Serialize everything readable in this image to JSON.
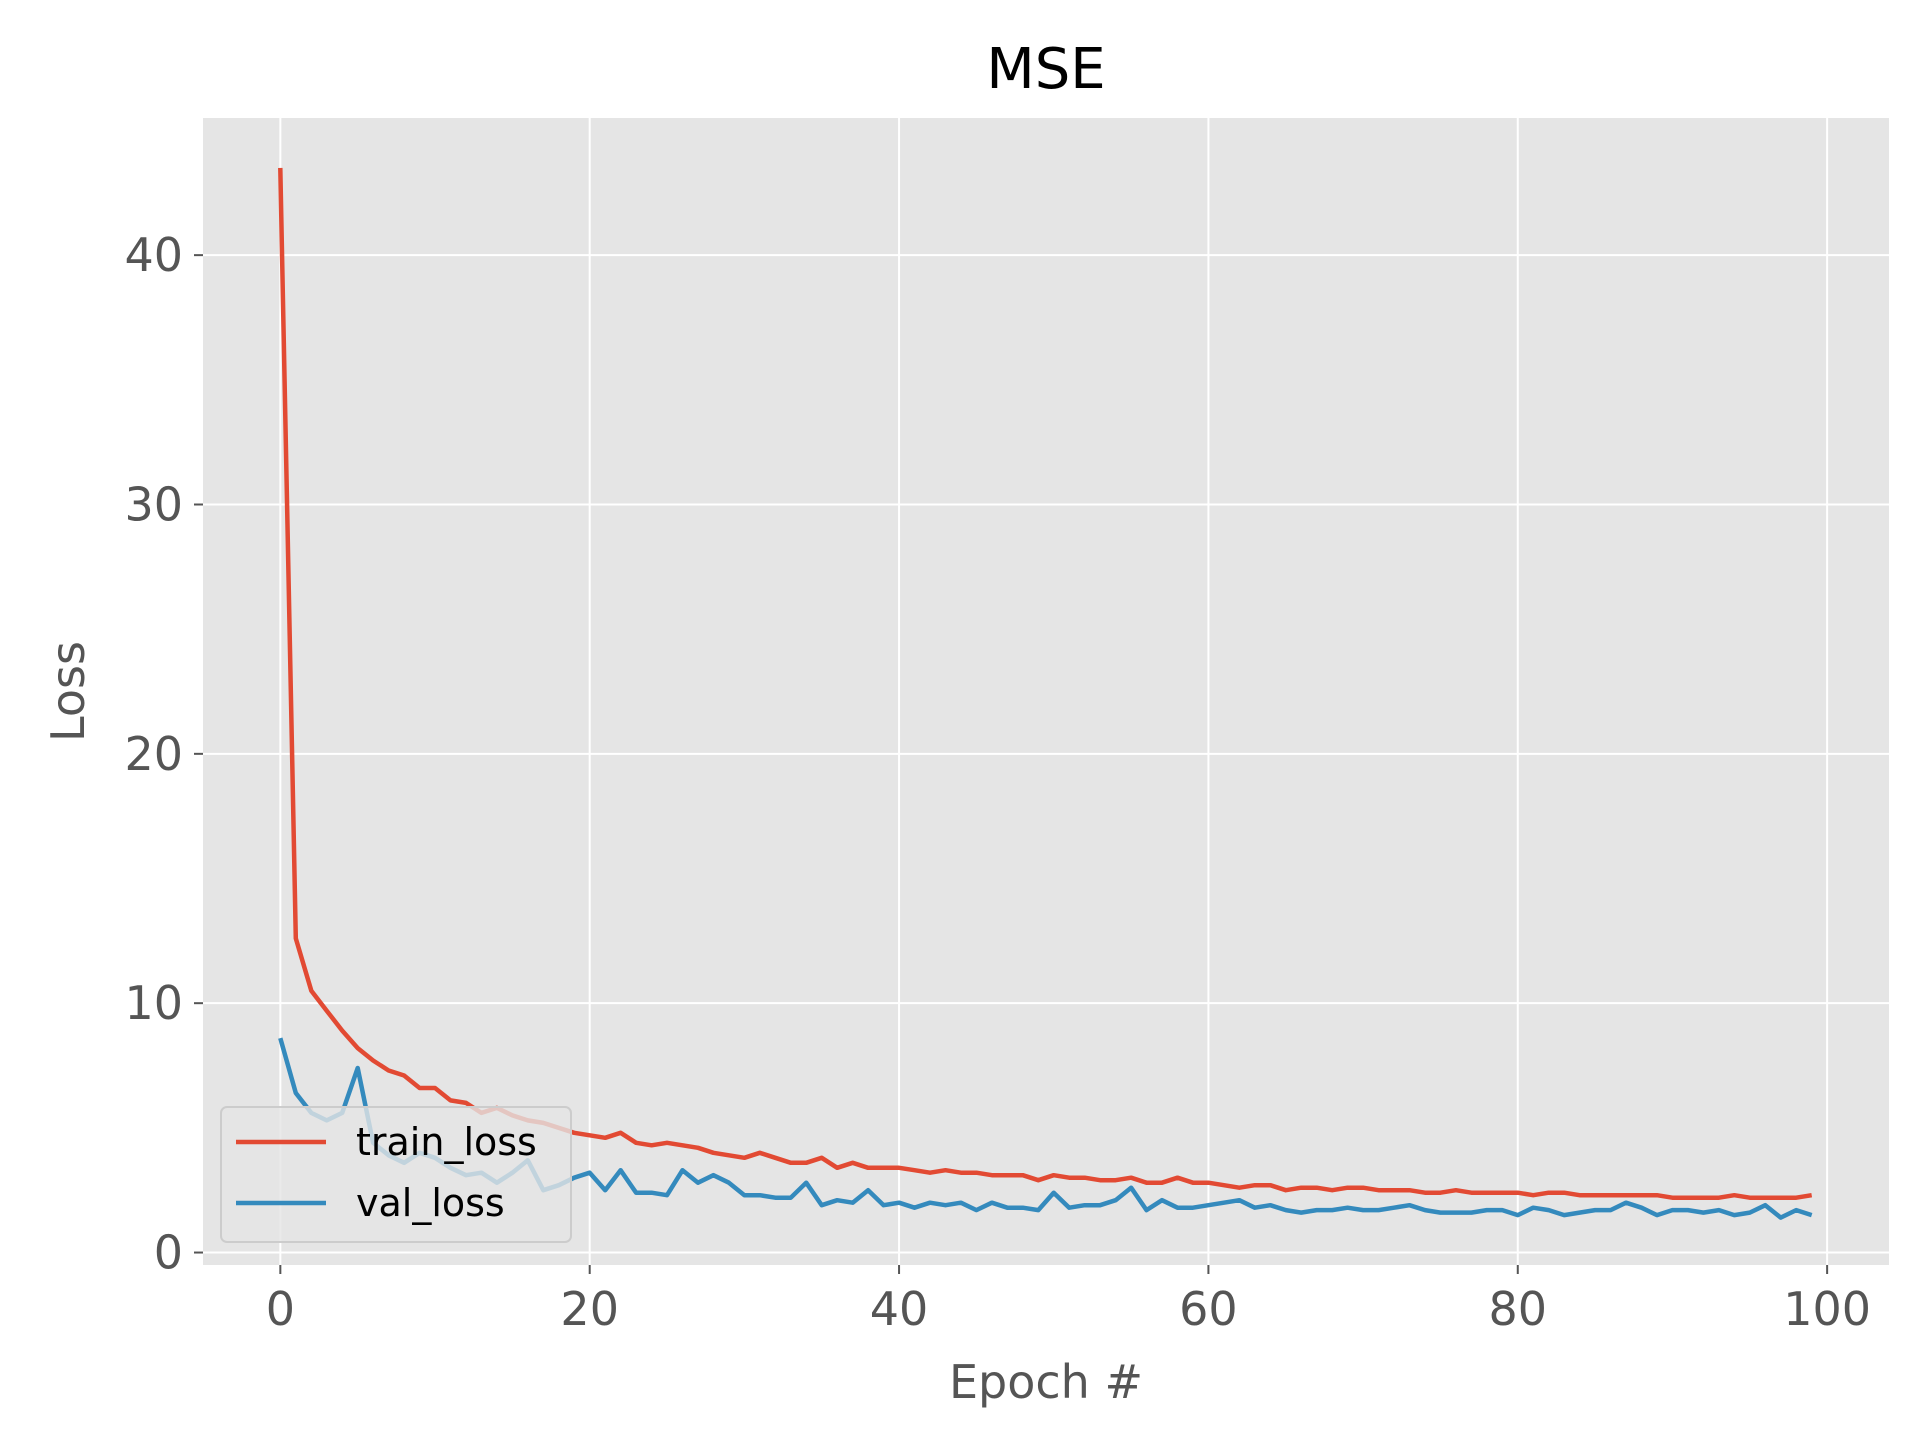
{
  "chart_data": {
    "type": "line",
    "title": "MSE",
    "xlabel": "Epoch #",
    "ylabel": "Loss",
    "xlim": [
      -5,
      104
    ],
    "ylim": [
      -0.5,
      45.5
    ],
    "xticks": [
      0,
      20,
      40,
      60,
      80,
      100
    ],
    "xtick_labels": [
      "0",
      "20",
      "40",
      "60",
      "80",
      "100"
    ],
    "yticks": [
      0,
      10,
      20,
      30,
      40
    ],
    "ytick_labels": [
      "0",
      "10",
      "20",
      "30",
      "40"
    ],
    "grid": true,
    "legend_position": "lower-left",
    "background_color": "#e5e5e5",
    "series": [
      {
        "name": "train_loss",
        "color": "#e24a33",
        "x": [
          0,
          1,
          2,
          3,
          4,
          5,
          6,
          7,
          8,
          9,
          10,
          11,
          12,
          13,
          14,
          15,
          16,
          17,
          18,
          19,
          20,
          21,
          22,
          23,
          24,
          25,
          26,
          27,
          28,
          29,
          30,
          31,
          32,
          33,
          34,
          35,
          36,
          37,
          38,
          39,
          40,
          41,
          42,
          43,
          44,
          45,
          46,
          47,
          48,
          49,
          50,
          51,
          52,
          53,
          54,
          55,
          56,
          57,
          58,
          59,
          60,
          61,
          62,
          63,
          64,
          65,
          66,
          67,
          68,
          69,
          70,
          71,
          72,
          73,
          74,
          75,
          76,
          77,
          78,
          79,
          80,
          81,
          82,
          83,
          84,
          85,
          86,
          87,
          88,
          89,
          90,
          91,
          92,
          93,
          94,
          95,
          96,
          97,
          98,
          99
        ],
        "values": [
          43.5,
          12.6,
          10.5,
          9.7,
          8.9,
          8.2,
          7.7,
          7.3,
          7.1,
          6.6,
          6.6,
          6.1,
          6.0,
          5.6,
          5.8,
          5.5,
          5.3,
          5.2,
          5.0,
          4.8,
          4.7,
          4.6,
          4.8,
          4.4,
          4.3,
          4.4,
          4.3,
          4.2,
          4.0,
          3.9,
          3.8,
          4.0,
          3.8,
          3.6,
          3.6,
          3.8,
          3.4,
          3.6,
          3.4,
          3.4,
          3.4,
          3.3,
          3.2,
          3.3,
          3.2,
          3.2,
          3.1,
          3.1,
          3.1,
          2.9,
          3.1,
          3.0,
          3.0,
          2.9,
          2.9,
          3.0,
          2.8,
          2.8,
          3.0,
          2.8,
          2.8,
          2.7,
          2.6,
          2.7,
          2.7,
          2.5,
          2.6,
          2.6,
          2.5,
          2.6,
          2.6,
          2.5,
          2.5,
          2.5,
          2.4,
          2.4,
          2.5,
          2.4,
          2.4,
          2.4,
          2.4,
          2.3,
          2.4,
          2.4,
          2.3,
          2.3,
          2.3,
          2.3,
          2.3,
          2.3,
          2.2,
          2.2,
          2.2,
          2.2,
          2.3,
          2.2,
          2.2,
          2.2,
          2.2,
          2.3
        ]
      },
      {
        "name": "val_loss",
        "color": "#348abd",
        "x": [
          0,
          1,
          2,
          3,
          4,
          5,
          6,
          7,
          8,
          9,
          10,
          11,
          12,
          13,
          14,
          15,
          16,
          17,
          18,
          19,
          20,
          21,
          22,
          23,
          24,
          25,
          26,
          27,
          28,
          29,
          30,
          31,
          32,
          33,
          34,
          35,
          36,
          37,
          38,
          39,
          40,
          41,
          42,
          43,
          44,
          45,
          46,
          47,
          48,
          49,
          50,
          51,
          52,
          53,
          54,
          55,
          56,
          57,
          58,
          59,
          60,
          61,
          62,
          63,
          64,
          65,
          66,
          67,
          68,
          69,
          70,
          71,
          72,
          73,
          74,
          75,
          76,
          77,
          78,
          79,
          80,
          81,
          82,
          83,
          84,
          85,
          86,
          87,
          88,
          89,
          90,
          91,
          92,
          93,
          94,
          95,
          96,
          97,
          98,
          99
        ],
        "values": [
          8.6,
          6.4,
          5.6,
          5.3,
          5.6,
          7.4,
          4.4,
          3.9,
          3.6,
          4.0,
          3.8,
          3.4,
          3.1,
          3.2,
          2.8,
          3.2,
          3.7,
          2.5,
          2.7,
          3.0,
          3.2,
          2.5,
          3.3,
          2.4,
          2.4,
          2.3,
          3.3,
          2.8,
          3.1,
          2.8,
          2.3,
          2.3,
          2.2,
          2.2,
          2.8,
          1.9,
          2.1,
          2.0,
          2.5,
          1.9,
          2.0,
          1.8,
          2.0,
          1.9,
          2.0,
          1.7,
          2.0,
          1.8,
          1.8,
          1.7,
          2.4,
          1.8,
          1.9,
          1.9,
          2.1,
          2.6,
          1.7,
          2.1,
          1.8,
          1.8,
          1.9,
          2.0,
          2.1,
          1.8,
          1.9,
          1.7,
          1.6,
          1.7,
          1.7,
          1.8,
          1.7,
          1.7,
          1.8,
          1.9,
          1.7,
          1.6,
          1.6,
          1.6,
          1.7,
          1.7,
          1.5,
          1.8,
          1.7,
          1.5,
          1.6,
          1.7,
          1.7,
          2.0,
          1.8,
          1.5,
          1.7,
          1.7,
          1.6,
          1.7,
          1.5,
          1.6,
          1.9,
          1.4,
          1.7,
          1.5
        ]
      }
    ]
  }
}
